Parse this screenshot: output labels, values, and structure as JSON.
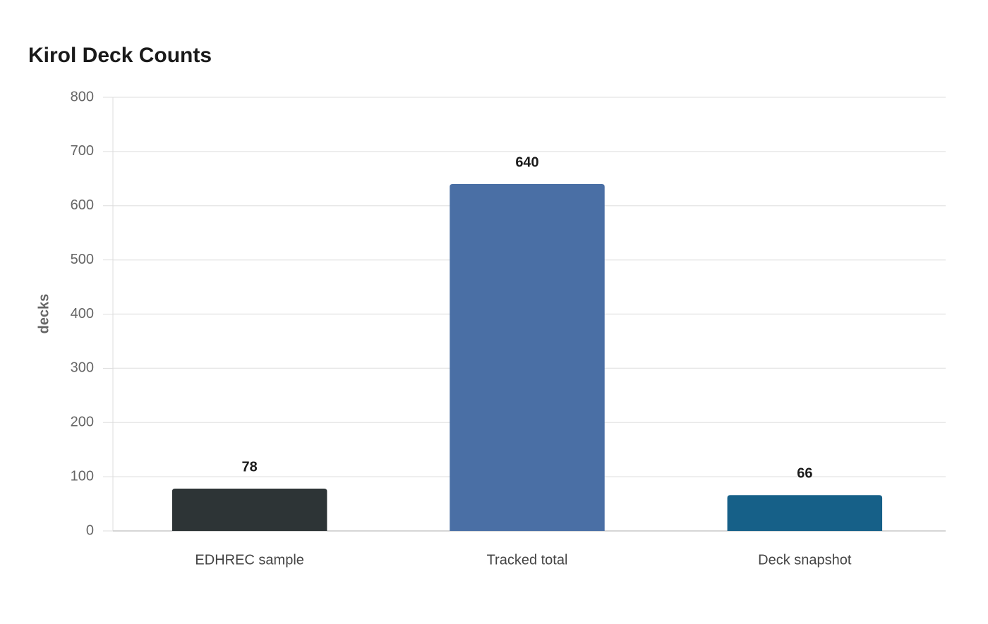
{
  "chart_data": {
    "type": "bar",
    "title": "Kirol Deck Counts",
    "y_label": "decks",
    "categories": [
      "EDHREC sample",
      "Tracked total",
      "Deck snapshot"
    ],
    "values": [
      78,
      640,
      66
    ],
    "colors": [
      "#2d3436",
      "#4a6fa5",
      "#166088"
    ],
    "ylim": [
      0,
      800
    ],
    "yticks": [
      0,
      100,
      200,
      300,
      400,
      500,
      600,
      700,
      800
    ],
    "grid": true
  }
}
